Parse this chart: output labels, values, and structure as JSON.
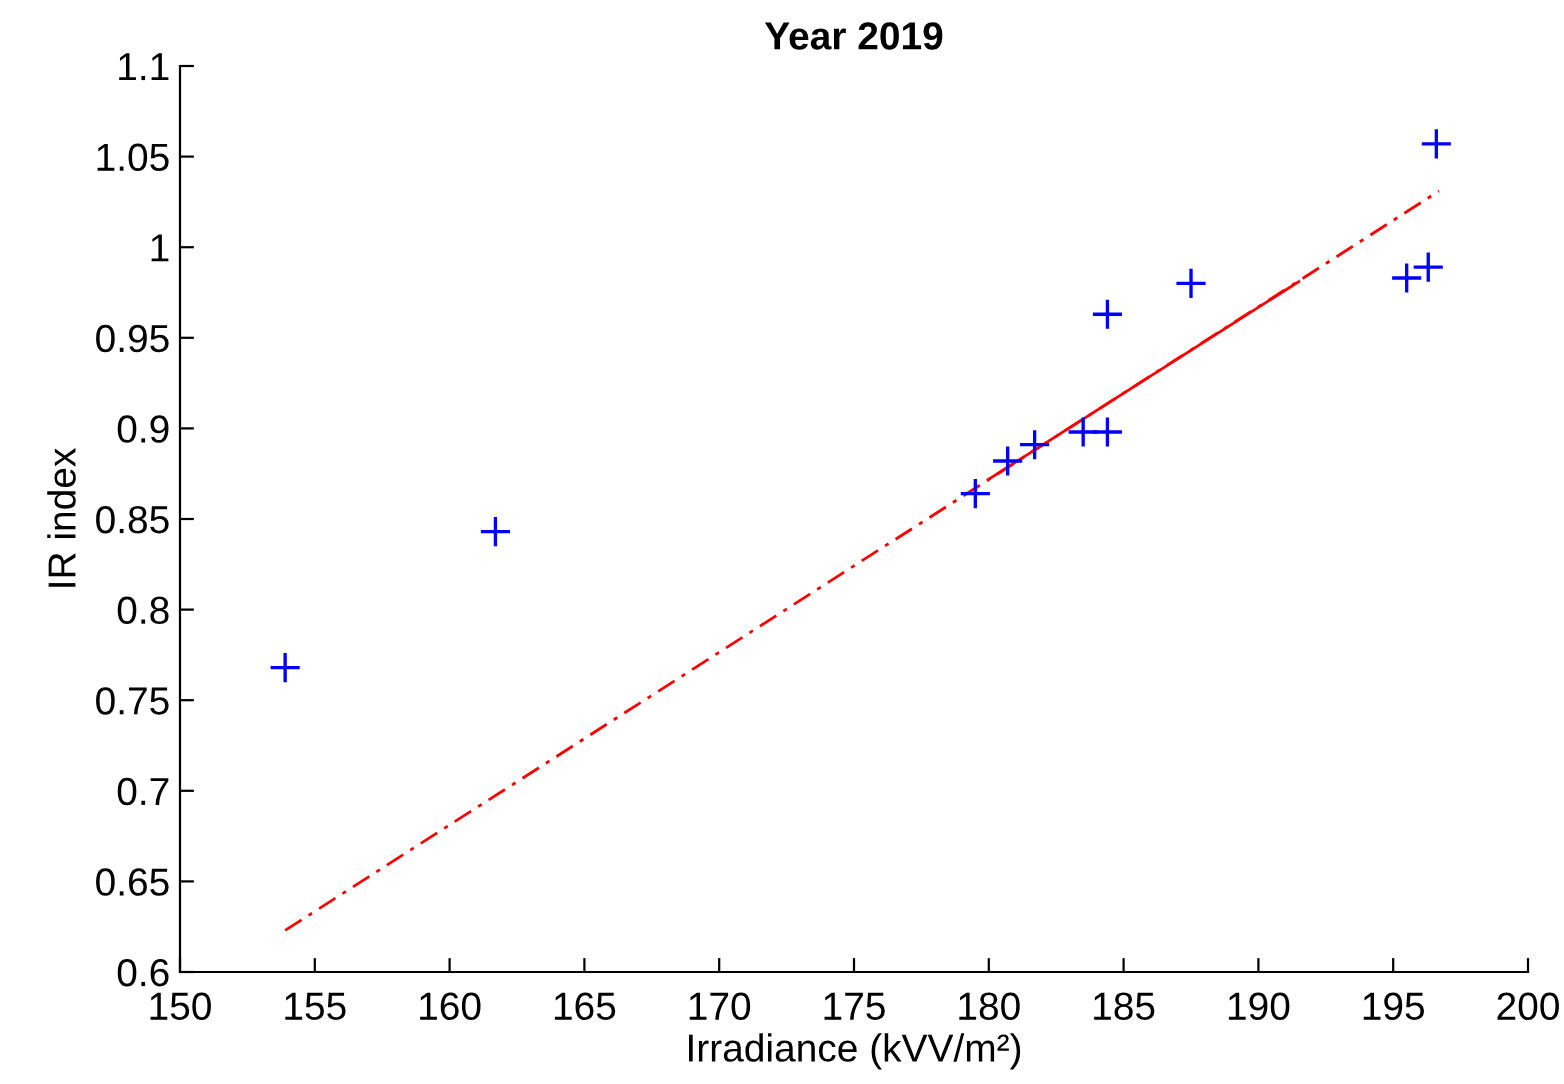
{
  "chart_data": {
    "type": "scatter",
    "title": "Year 2019",
    "xlabel": "Irradiance (kVV/m²)",
    "ylabel": "IR index",
    "xlim": [
      150,
      200
    ],
    "xticks": [
      150,
      155,
      160,
      165,
      170,
      175,
      180,
      185,
      190,
      195,
      200
    ],
    "ylim": [
      0.6,
      1.1
    ],
    "yticks": [
      0.6,
      0.65,
      0.7,
      0.75,
      0.8,
      0.85,
      0.9,
      0.95,
      1,
      1.05,
      1.1
    ],
    "grid": false,
    "legend": false,
    "series": [
      {
        "color": "#0000ff",
        "marker": "cross",
        "x": [
          153.9,
          161.7,
          179.5,
          180.7,
          181.7,
          183.5,
          184.4,
          184.4,
          187.5,
          195.5,
          196.3,
          196.6
        ],
        "values": [
          0.768,
          0.843,
          0.864,
          0.882,
          0.891,
          0.898,
          0.898,
          0.963,
          0.98,
          0.983,
          0.989,
          1.057
        ]
      },
      {
        "type": "line",
        "color": "#ff0000",
        "line_style": "dashed",
        "marker": "none",
        "x": [
          153.9,
          196.7
        ],
        "values": [
          0.623,
          1.031
        ]
      },
      {
        "type": "line",
        "color": "#ff0000",
        "line_style": "solid",
        "marker": "none",
        "x": [
          180.0,
          191.5
        ],
        "values": [
          0.872,
          0.981
        ]
      }
    ]
  }
}
